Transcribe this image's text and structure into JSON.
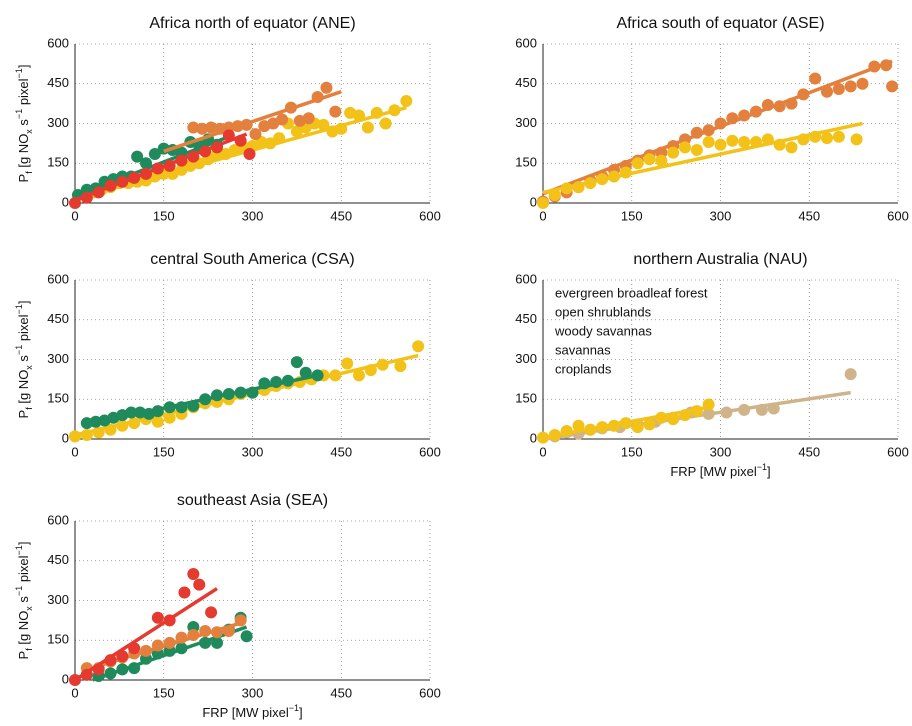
{
  "chart_data": [
    {
      "type": "scatter",
      "title": "Africa north of equator (ANE)",
      "ylabel": [
        {
          "text": "P"
        },
        {
          "text": "f",
          "shift": "sub"
        },
        {
          "text": " [g NO"
        },
        {
          "text": "x",
          "shift": "sub"
        },
        {
          "text": " s"
        },
        {
          "text": "−1",
          "shift": "super"
        },
        {
          "text": " pixel"
        },
        {
          "text": "−1",
          "shift": "super"
        },
        {
          "text": "]"
        }
      ],
      "xlim": [
        0,
        600
      ],
      "ylim": [
        0,
        600
      ],
      "xticks": [
        0,
        150,
        300,
        450,
        600
      ],
      "yticks": [
        0,
        150,
        300,
        450,
        600
      ],
      "grid": true,
      "series": [
        {
          "color": "#f2c218",
          "x": [
            30,
            45,
            60,
            75,
            90,
            105,
            120,
            135,
            150,
            165,
            180,
            195,
            210,
            225,
            240,
            255,
            270,
            285,
            300,
            315,
            330,
            345,
            360,
            375,
            390,
            405,
            420,
            435,
            450,
            465,
            480,
            495,
            510,
            525,
            540,
            560
          ],
          "values": [
            40,
            50,
            60,
            75,
            75,
            80,
            85,
            100,
            110,
            110,
            125,
            140,
            150,
            165,
            185,
            185,
            200,
            210,
            215,
            230,
            225,
            245,
            300,
            270,
            285,
            300,
            295,
            270,
            280,
            340,
            330,
            285,
            340,
            300,
            350,
            385
          ],
          "fit_x": [
            0,
            560
          ],
          "fit_y": [
            15,
            360
          ]
        },
        {
          "color": "#1f8a5c",
          "x": [
            5,
            20,
            35,
            50,
            65,
            80,
            95,
            105,
            120,
            135,
            150,
            165,
            180,
            195,
            210,
            225,
            240
          ],
          "values": [
            30,
            50,
            55,
            80,
            90,
            100,
            100,
            175,
            150,
            185,
            205,
            200,
            190,
            230,
            215,
            240,
            220
          ],
          "fit_x": [
            0,
            260
          ],
          "fit_y": [
            25,
            250
          ]
        },
        {
          "color": "#e4803e",
          "x": [
            200,
            215,
            230,
            245,
            260,
            275,
            290,
            305,
            320,
            335,
            350,
            365,
            380,
            395,
            410,
            425,
            440
          ],
          "values": [
            285,
            280,
            285,
            280,
            285,
            290,
            295,
            260,
            290,
            300,
            315,
            360,
            310,
            320,
            400,
            435,
            345
          ],
          "fit_x": [
            150,
            450
          ],
          "fit_y": [
            195,
            420
          ]
        },
        {
          "color": "#e43a2f",
          "x": [
            0,
            20,
            40,
            60,
            80,
            100,
            120,
            140,
            160,
            180,
            200,
            220,
            240,
            260,
            280,
            295
          ],
          "values": [
            0,
            20,
            40,
            65,
            80,
            95,
            110,
            130,
            140,
            160,
            175,
            195,
            210,
            255,
            235,
            185
          ],
          "fit_x": [
            0,
            290
          ],
          "fit_y": [
            10,
            260
          ]
        }
      ]
    },
    {
      "type": "scatter",
      "title": "Africa south of equator (ASE)",
      "xlim": [
        0,
        600
      ],
      "ylim": [
        0,
        600
      ],
      "xticks": [
        0,
        150,
        300,
        450,
        600
      ],
      "yticks": [
        0,
        150,
        300,
        450,
        600
      ],
      "grid": true,
      "series": [
        {
          "color": "#e4803e",
          "x": [
            0,
            20,
            40,
            60,
            80,
            100,
            120,
            140,
            160,
            180,
            200,
            220,
            240,
            260,
            280,
            300,
            320,
            340,
            360,
            380,
            400,
            420,
            440,
            460,
            480,
            500,
            520,
            540,
            560,
            580,
            590
          ],
          "values": [
            5,
            25,
            40,
            60,
            85,
            100,
            125,
            140,
            160,
            180,
            190,
            215,
            240,
            265,
            275,
            300,
            320,
            330,
            345,
            370,
            365,
            375,
            410,
            470,
            420,
            430,
            440,
            450,
            515,
            520,
            440
          ],
          "fit_x": [
            0,
            590
          ],
          "fit_y": [
            35,
            535
          ]
        },
        {
          "color": "#f2c218",
          "x": [
            0,
            20,
            40,
            60,
            80,
            100,
            120,
            140,
            160,
            180,
            200,
            220,
            240,
            260,
            280,
            300,
            320,
            340,
            360,
            380,
            400,
            420,
            440,
            460,
            480,
            500,
            530
          ],
          "values": [
            0,
            30,
            55,
            60,
            75,
            90,
            100,
            115,
            150,
            165,
            160,
            190,
            210,
            200,
            230,
            220,
            235,
            230,
            230,
            240,
            220,
            210,
            240,
            250,
            245,
            250,
            240
          ],
          "fit_x": [
            0,
            540
          ],
          "fit_y": [
            40,
            300
          ]
        }
      ]
    },
    {
      "type": "scatter",
      "title": "central South America (CSA)",
      "ylabel": [
        {
          "text": "P"
        },
        {
          "text": "f",
          "shift": "sub"
        },
        {
          "text": " [g NO"
        },
        {
          "text": "x",
          "shift": "sub"
        },
        {
          "text": " s"
        },
        {
          "text": "−1",
          "shift": "super"
        },
        {
          "text": " pixel"
        },
        {
          "text": "−1",
          "shift": "super"
        },
        {
          "text": "]"
        }
      ],
      "xlim": [
        0,
        600
      ],
      "ylim": [
        0,
        600
      ],
      "xticks": [
        0,
        150,
        300,
        450,
        600
      ],
      "yticks": [
        0,
        150,
        300,
        450,
        600
      ],
      "grid": true,
      "series": [
        {
          "color": "#f2c218",
          "x": [
            0,
            20,
            40,
            60,
            80,
            100,
            120,
            140,
            160,
            180,
            200,
            220,
            240,
            260,
            280,
            300,
            320,
            340,
            360,
            380,
            400,
            420,
            440,
            460,
            480,
            500,
            520,
            550,
            580
          ],
          "values": [
            10,
            15,
            25,
            35,
            50,
            60,
            75,
            65,
            80,
            95,
            120,
            135,
            140,
            150,
            170,
            175,
            185,
            200,
            210,
            215,
            225,
            240,
            240,
            285,
            240,
            260,
            280,
            275,
            350
          ],
          "fit_x": [
            0,
            580
          ],
          "fit_y": [
            15,
            315
          ]
        },
        {
          "color": "#1f8a5c",
          "x": [
            20,
            35,
            50,
            65,
            80,
            95,
            110,
            125,
            140,
            160,
            180,
            200,
            220,
            240,
            260,
            280,
            300,
            320,
            340,
            360,
            375,
            390,
            410
          ],
          "values": [
            60,
            65,
            70,
            80,
            90,
            100,
            100,
            95,
            105,
            120,
            120,
            125,
            150,
            165,
            170,
            175,
            175,
            210,
            215,
            220,
            290,
            250,
            240
          ],
          "fit_x": [
            20,
            410
          ],
          "fit_y": [
            55,
            240
          ]
        }
      ]
    },
    {
      "type": "scatter",
      "title": "northern Australia (NAU)",
      "xlabel": [
        {
          "text": "FRP [MW pixel"
        },
        {
          "text": "−1",
          "shift": "super"
        },
        {
          "text": "]"
        }
      ],
      "xlim": [
        0,
        600
      ],
      "ylim": [
        0,
        600
      ],
      "xticks": [
        0,
        150,
        300,
        450,
        600
      ],
      "yticks": [
        0,
        150,
        300,
        450,
        600
      ],
      "grid": true,
      "legend": "upper left",
      "series": [
        {
          "name": "evergreen broadleaf forest",
          "color": "#1f8a5c",
          "x": [],
          "values": []
        },
        {
          "name": "open shrublands",
          "color": "#cfb48a",
          "x": [
            20,
            40,
            60,
            80,
            100,
            130,
            160,
            190,
            220,
            250,
            280,
            310,
            340,
            370,
            390,
            520
          ],
          "values": [
            10,
            25,
            20,
            35,
            40,
            45,
            55,
            65,
            80,
            100,
            95,
            100,
            110,
            110,
            115,
            245
          ],
          "fit_x": [
            0,
            520
          ],
          "fit_y": [
            0,
            175
          ]
        },
        {
          "name": "woody savannas",
          "color": "#e4803e",
          "x": [],
          "values": []
        },
        {
          "name": "savannas",
          "color": "#f2c218",
          "x": [
            0,
            20,
            40,
            60,
            80,
            100,
            120,
            140,
            160,
            180,
            200,
            220,
            240,
            260,
            280
          ],
          "values": [
            5,
            15,
            30,
            50,
            35,
            45,
            50,
            60,
            45,
            55,
            80,
            75,
            90,
            105,
            130
          ],
          "fit_x": [
            0,
            280
          ],
          "fit_y": [
            5,
            120
          ]
        },
        {
          "name": "croplands",
          "color": "#e43a2f",
          "x": [],
          "values": []
        }
      ]
    },
    {
      "type": "scatter",
      "title": "southeast Asia (SEA)",
      "ylabel": [
        {
          "text": "P"
        },
        {
          "text": "f",
          "shift": "sub"
        },
        {
          "text": " [g NO"
        },
        {
          "text": "x",
          "shift": "sub"
        },
        {
          "text": " s"
        },
        {
          "text": "−1",
          "shift": "super"
        },
        {
          "text": " pixel"
        },
        {
          "text": "−1",
          "shift": "super"
        },
        {
          "text": "]"
        }
      ],
      "xlabel": [
        {
          "text": "FRP [MW pixel"
        },
        {
          "text": "−1",
          "shift": "super"
        },
        {
          "text": "]"
        }
      ],
      "xlim": [
        0,
        600
      ],
      "ylim": [
        0,
        600
      ],
      "xticks": [
        0,
        150,
        300,
        450,
        600
      ],
      "yticks": [
        0,
        150,
        300,
        450,
        600
      ],
      "grid": true,
      "series": [
        {
          "color": "#1f8a5c",
          "x": [
            20,
            40,
            60,
            80,
            100,
            120,
            140,
            160,
            180,
            200,
            220,
            240,
            260,
            280,
            290
          ],
          "values": [
            20,
            15,
            25,
            40,
            45,
            80,
            100,
            110,
            120,
            200,
            140,
            140,
            190,
            235,
            165
          ],
          "fit_x": [
            30,
            290
          ],
          "fit_y": [
            0,
            200
          ]
        },
        {
          "color": "#e4803e",
          "x": [
            20,
            40,
            60,
            80,
            100,
            120,
            140,
            160,
            180,
            200,
            220,
            240,
            260,
            280
          ],
          "values": [
            45,
            45,
            70,
            85,
            100,
            110,
            130,
            140,
            160,
            170,
            185,
            180,
            185,
            225
          ],
          "fit_x": [
            20,
            280
          ],
          "fit_y": [
            40,
            215
          ]
        },
        {
          "color": "#e43a2f",
          "x": [
            0,
            20,
            40,
            60,
            80,
            100,
            140,
            160,
            185,
            200,
            210,
            230
          ],
          "values": [
            0,
            20,
            40,
            75,
            90,
            120,
            235,
            225,
            330,
            400,
            360,
            255
          ],
          "fit_x": [
            0,
            240
          ],
          "fit_y": [
            0,
            345
          ]
        }
      ]
    }
  ]
}
